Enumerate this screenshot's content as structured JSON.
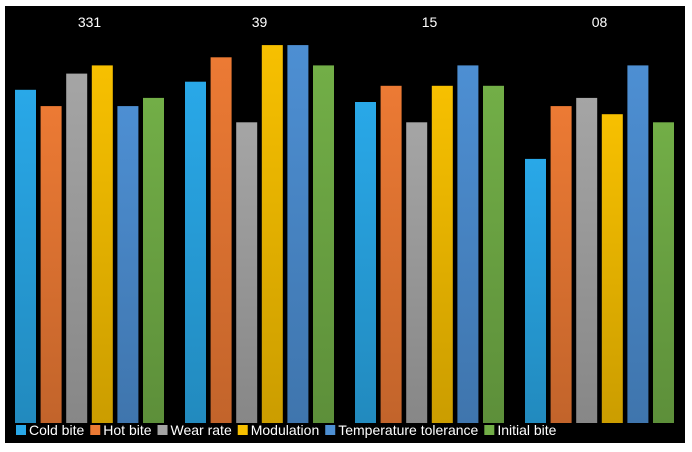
{
  "chart_data": {
    "type": "bar",
    "categories": [
      "331",
      "39",
      "15",
      "08"
    ],
    "series": [
      {
        "name": "Cold bite",
        "color": "#29a8e8",
        "values": [
          41,
          42,
          39.5,
          32.5
        ]
      },
      {
        "name": "Hot bite",
        "color": "#ec7a34",
        "values": [
          39,
          45,
          41.5,
          39
        ]
      },
      {
        "name": "Wear rate",
        "color": "#a5a5a5",
        "values": [
          43,
          37,
          37,
          40
        ]
      },
      {
        "name": "Modulation",
        "color": "#f7c000",
        "values": [
          44,
          46.5,
          41.5,
          38
        ]
      },
      {
        "name": "Temperature tolerance",
        "color": "#4d8fd3",
        "values": [
          39,
          46.5,
          44,
          44
        ]
      },
      {
        "name": "Initial bite",
        "color": "#72ae47",
        "values": [
          40,
          44,
          41.5,
          37
        ]
      }
    ],
    "ylim": [
      0,
      47.5
    ],
    "grid": false,
    "legend_position": "bottom",
    "background": "#000000"
  }
}
